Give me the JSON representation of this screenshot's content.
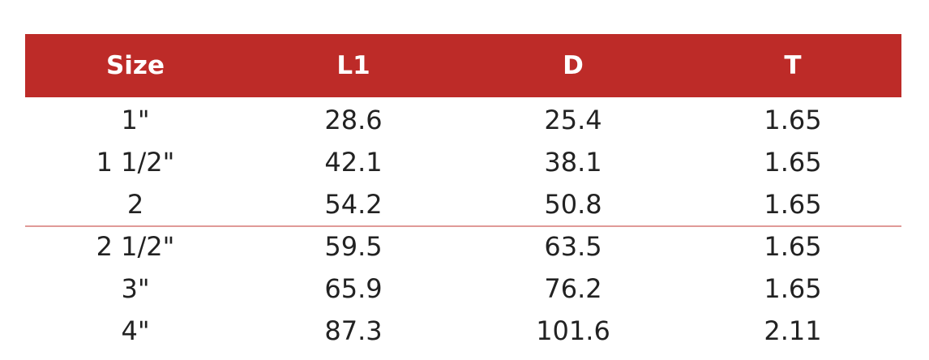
{
  "table": {
    "header": [
      "Size",
      "L1",
      "D",
      "T"
    ],
    "rows": [
      [
        "1\"",
        "28.6",
        "25.4",
        "1.65"
      ],
      [
        "1 1/2\"",
        "42.1",
        "38.1",
        "1.65"
      ],
      [
        "2",
        "54.2",
        "50.8",
        "1.65"
      ],
      [
        "2 1/2\"",
        "59.5",
        "63.5",
        "1.65"
      ],
      [
        "3\"",
        "65.9",
        "76.2",
        "1.65"
      ],
      [
        "4\"",
        "87.3",
        "101.6",
        "2.11"
      ]
    ]
  }
}
